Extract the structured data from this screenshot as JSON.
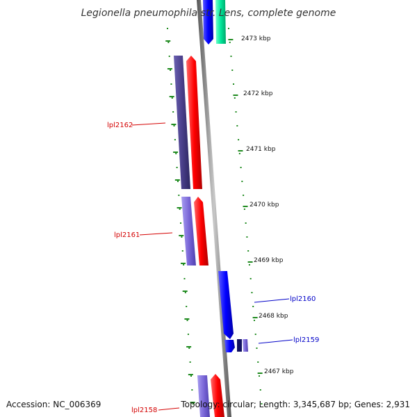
{
  "title": "Legionella pneumophila str. Lens, complete genome",
  "footer": {
    "accession": "Accession: NC_006369",
    "stats": "Topology: circular; Length: 3,345,687 bp; Genes: 2,931"
  },
  "scale_labels": [
    "2473 kbp",
    "2472 kbp",
    "2471 kbp",
    "2470 kbp",
    "2469 kbp",
    "2468 kbp",
    "2467 kbp"
  ],
  "gene_labels": [
    "lpl2162",
    "lpl2161",
    "lpl2160",
    "lpl2159",
    "lpl2158"
  ],
  "colors": {
    "backbone": "#8c8c8c",
    "tick": "#1e8a1e",
    "left_label": "#d40000",
    "right_label": "#0000c8",
    "cds_forward": "#ff0000",
    "cds_dark_purple": "#4a3f8a",
    "cds_light_purple": "#7b68d8",
    "cds_blue": "#0000ff",
    "cds_green": "#00e89a",
    "cds_navy": "#101060"
  }
}
